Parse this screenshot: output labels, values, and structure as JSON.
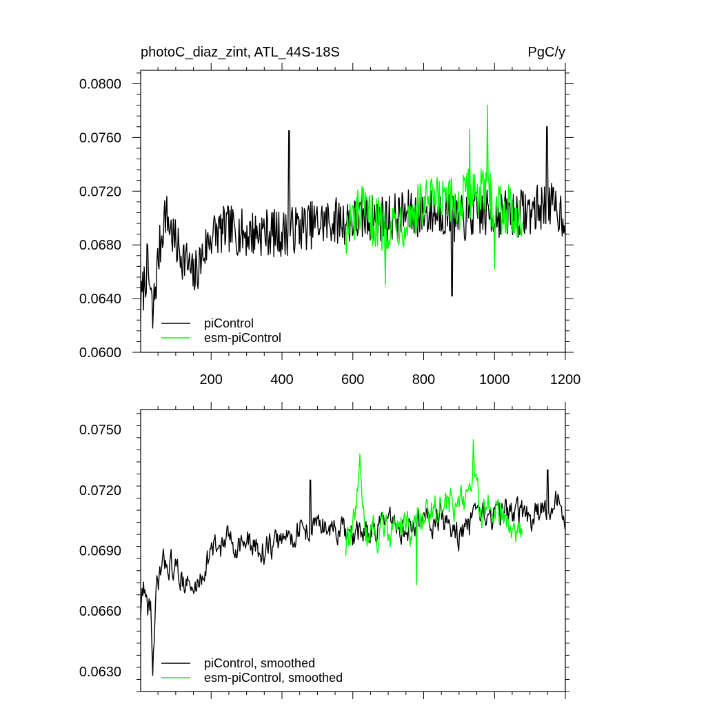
{
  "colors": {
    "piControl": "#000000",
    "esm": "#00ff00"
  },
  "chart_data": [
    {
      "id": "raw",
      "type": "line",
      "title": "photoC_diaz_zint, ATL_44S-18S",
      "units": "PgC/y",
      "xlim": [
        1,
        1200
      ],
      "ylim": [
        0.06,
        0.081
      ],
      "xticks": [
        200,
        400,
        600,
        800,
        1000,
        1200
      ],
      "xtick_labels": [
        "200",
        "400",
        "600",
        "800",
        "1000",
        "1200"
      ],
      "yticks": [
        0.06,
        0.064,
        0.068,
        0.072,
        0.076,
        0.08
      ],
      "ytick_labels": [
        "0.0600",
        "0.0640",
        "0.0680",
        "0.0720",
        "0.0760",
        "0.0800"
      ],
      "legend": [
        "piControl",
        "esm-piControl"
      ],
      "series": [
        {
          "name": "piControl",
          "color": "#000000",
          "x_range": [
            1,
            1200
          ],
          "key_points": [
            [
              1,
              0.0635
            ],
            [
              20,
              0.0665
            ],
            [
              35,
              0.0628
            ],
            [
              50,
              0.0668
            ],
            [
              70,
              0.0705
            ],
            [
              100,
              0.068
            ],
            [
              130,
              0.0668
            ],
            [
              150,
              0.0655
            ],
            [
              200,
              0.0688
            ],
            [
              250,
              0.0692
            ],
            [
              300,
              0.0688
            ],
            [
              350,
              0.069
            ],
            [
              400,
              0.0688
            ],
            [
              450,
              0.0693
            ],
            [
              500,
              0.0696
            ],
            [
              550,
              0.0698
            ],
            [
              600,
              0.0698
            ],
            [
              650,
              0.07
            ],
            [
              700,
              0.07
            ],
            [
              750,
              0.0703
            ],
            [
              800,
              0.0703
            ],
            [
              850,
              0.0705
            ],
            [
              900,
              0.0698
            ],
            [
              950,
              0.0703
            ],
            [
              1000,
              0.0703
            ],
            [
              1050,
              0.0703
            ],
            [
              1100,
              0.0705
            ],
            [
              1150,
              0.071
            ],
            [
              1200,
              0.0702
            ]
          ],
          "noise_amplitude": 0.0018,
          "extremes": [
            [
              35,
              0.0618
            ],
            [
              880,
              0.0642
            ],
            [
              1148,
              0.0768
            ],
            [
              420,
              0.0765
            ]
          ]
        },
        {
          "name": "esm-piControl",
          "color": "#00ff00",
          "x_range": [
            580,
            1080
          ],
          "key_points": [
            [
              580,
              0.069
            ],
            [
              620,
              0.0705
            ],
            [
              680,
              0.0695
            ],
            [
              740,
              0.0698
            ],
            [
              800,
              0.071
            ],
            [
              850,
              0.0712
            ],
            [
              900,
              0.0708
            ],
            [
              940,
              0.0722
            ],
            [
              980,
              0.0715
            ],
            [
              1040,
              0.0705
            ],
            [
              1080,
              0.0702
            ]
          ],
          "noise_amplitude": 0.002,
          "extremes": [
            [
              980,
              0.0784
            ],
            [
              930,
              0.0766
            ],
            [
              692,
              0.065
            ],
            [
              1000,
              0.0662
            ]
          ]
        }
      ]
    },
    {
      "id": "smoothed",
      "type": "line",
      "title": "",
      "units": "",
      "xlim": [
        1,
        1200
      ],
      "ylim": [
        0.062,
        0.076
      ],
      "xticks": [
        200,
        400,
        600,
        800,
        1000,
        1200
      ],
      "xtick_labels": [],
      "yticks": [
        0.063,
        0.066,
        0.069,
        0.072,
        0.075
      ],
      "ytick_labels": [
        "0.0630",
        "0.0660",
        "0.0690",
        "0.0720",
        "0.0750"
      ],
      "legend": [
        "piControl, smoothed",
        "esm-piControl, smoothed"
      ],
      "series": [
        {
          "name": "piControl, smoothed",
          "color": "#000000",
          "x_range": [
            1,
            1200
          ],
          "key_points": [
            [
              1,
              0.066
            ],
            [
              10,
              0.0675
            ],
            [
              20,
              0.066
            ],
            [
              30,
              0.0665
            ],
            [
              35,
              0.0628
            ],
            [
              45,
              0.0665
            ],
            [
              55,
              0.0678
            ],
            [
              75,
              0.0686
            ],
            [
              100,
              0.068
            ],
            [
              130,
              0.0675
            ],
            [
              150,
              0.0668
            ],
            [
              200,
              0.069
            ],
            [
              250,
              0.0695
            ],
            [
              300,
              0.0693
            ],
            [
              350,
              0.069
            ],
            [
              400,
              0.0695
            ],
            [
              450,
              0.07
            ],
            [
              500,
              0.0703
            ],
            [
              550,
              0.07
            ],
            [
              600,
              0.0695
            ],
            [
              650,
              0.0702
            ],
            [
              700,
              0.0702
            ],
            [
              750,
              0.07
            ],
            [
              800,
              0.0705
            ],
            [
              850,
              0.0705
            ],
            [
              900,
              0.0698
            ],
            [
              950,
              0.0703
            ],
            [
              1000,
              0.0708
            ],
            [
              1050,
              0.071
            ],
            [
              1100,
              0.0705
            ],
            [
              1150,
              0.071
            ],
            [
              1170,
              0.0717
            ],
            [
              1200,
              0.0705
            ]
          ],
          "noise_amplitude": 0.0008,
          "extremes": [
            [
              35,
              0.0628
            ],
            [
              1150,
              0.073
            ],
            [
              480,
              0.0725
            ]
          ]
        },
        {
          "name": "esm-piControl, smoothed",
          "color": "#00ff00",
          "x_range": [
            580,
            1080
          ],
          "key_points": [
            [
              580,
              0.069
            ],
            [
              600,
              0.07
            ],
            [
              620,
              0.0725
            ],
            [
              640,
              0.0698
            ],
            [
              680,
              0.07
            ],
            [
              720,
              0.0703
            ],
            [
              760,
              0.07
            ],
            [
              800,
              0.071
            ],
            [
              840,
              0.0712
            ],
            [
              880,
              0.0712
            ],
            [
              920,
              0.0715
            ],
            [
              940,
              0.073
            ],
            [
              960,
              0.0708
            ],
            [
              1000,
              0.0712
            ],
            [
              1040,
              0.0705
            ],
            [
              1080,
              0.07
            ]
          ],
          "noise_amplitude": 0.0009,
          "extremes": [
            [
              620,
              0.0738
            ],
            [
              940,
              0.0745
            ],
            [
              780,
              0.0673
            ]
          ]
        }
      ]
    }
  ]
}
